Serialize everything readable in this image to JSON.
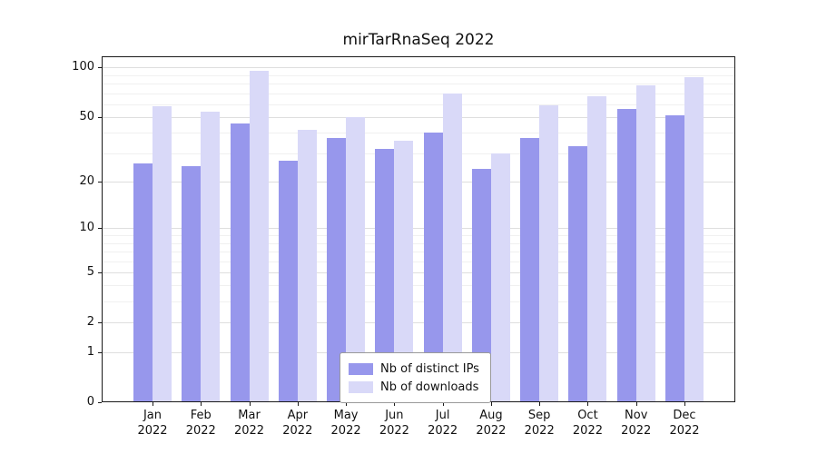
{
  "chart_data": {
    "type": "bar",
    "title": "mirTarRnaSeq 2022",
    "categories": [
      "Jan",
      "Feb",
      "Mar",
      "Apr",
      "May",
      "Jun",
      "Jul",
      "Aug",
      "Sep",
      "Oct",
      "Nov",
      "Dec"
    ],
    "xlabel_year": "2022",
    "series": [
      {
        "name": "Nb of distinct IPs",
        "color": "#9797ec",
        "values": [
          26,
          25,
          46,
          27,
          37,
          32,
          40,
          24,
          37,
          33,
          56,
          51
        ]
      },
      {
        "name": "Nb of downloads",
        "color": "#d9d9f8",
        "values": [
          58,
          54,
          95,
          42,
          50,
          36,
          70,
          30,
          59,
          67,
          78,
          87
        ]
      }
    ],
    "yticks": [
      0,
      1,
      2,
      5,
      10,
      20,
      50,
      100
    ],
    "minor_yticks": [
      3,
      4,
      6,
      7,
      8,
      9,
      30,
      40,
      60,
      70,
      80,
      90
    ],
    "scale": "log1p",
    "ylim": [
      0,
      117
    ],
    "grid": "horizontal",
    "legend_position": "bottom-center",
    "colors": {
      "axis": "#1a1a1a",
      "grid_major": "#dedede",
      "grid_minor": "#f0f0f0",
      "text": "#111111"
    }
  }
}
